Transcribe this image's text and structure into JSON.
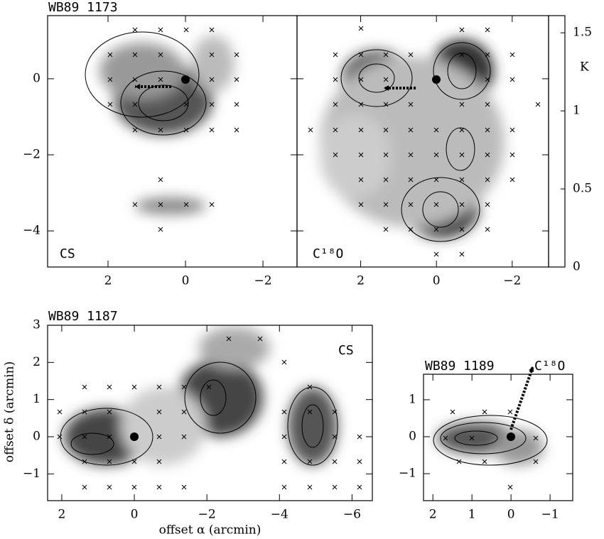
{
  "chart_data": [
    {
      "type": "map",
      "title": "WB89 1173",
      "label": "CS",
      "xlim": [
        3.56,
        -2.88
      ],
      "ylim": [
        -4.95,
        1.66
      ],
      "xticks": [
        2,
        0,
        {
          "value": -2,
          "label": "−2"
        }
      ],
      "yticks": [
        0,
        {
          "value": -2,
          "label": "−2"
        },
        {
          "value": -4,
          "label": "−4"
        }
      ]
    },
    {
      "type": "map",
      "title": null,
      "label": "C¹⁸O",
      "xlim": [
        3.68,
        -2.96
      ],
      "ylim": [
        -4.95,
        1.66
      ],
      "xticks": [
        2,
        0,
        {
          "value": -2,
          "label": "−2"
        }
      ],
      "colorbar": {
        "label": "K",
        "ylim": [
          0,
          1.61
        ],
        "yticks": [
          0,
          0.5,
          1,
          1.5
        ]
      }
    },
    {
      "type": "map",
      "title": "WB89 1187",
      "label": "CS",
      "xlabel": "offset α  (arcmin)",
      "ylabel": "offset δ  (arcmin)",
      "xlim": [
        2.39,
        -6.56
      ],
      "ylim": [
        -1.72,
        3
      ],
      "xticks": [
        2,
        0,
        {
          "value": -2,
          "label": "−2"
        },
        {
          "value": -4,
          "label": "−4"
        },
        {
          "value": -6,
          "label": "−6"
        }
      ],
      "yticks": [
        3,
        2,
        1,
        0,
        {
          "value": -1,
          "label": "−1"
        }
      ]
    },
    {
      "type": "map",
      "title": "WB89 1189",
      "label": "C¹⁸O",
      "xlim": [
        2.24,
        -1.58
      ],
      "ylim": [
        -1.73,
        1.69
      ],
      "xticks": [
        2,
        1,
        0,
        {
          "value": -1,
          "label": "−1"
        }
      ],
      "yticks": [
        1,
        0,
        {
          "value": -1,
          "label": "−1"
        }
      ]
    }
  ]
}
